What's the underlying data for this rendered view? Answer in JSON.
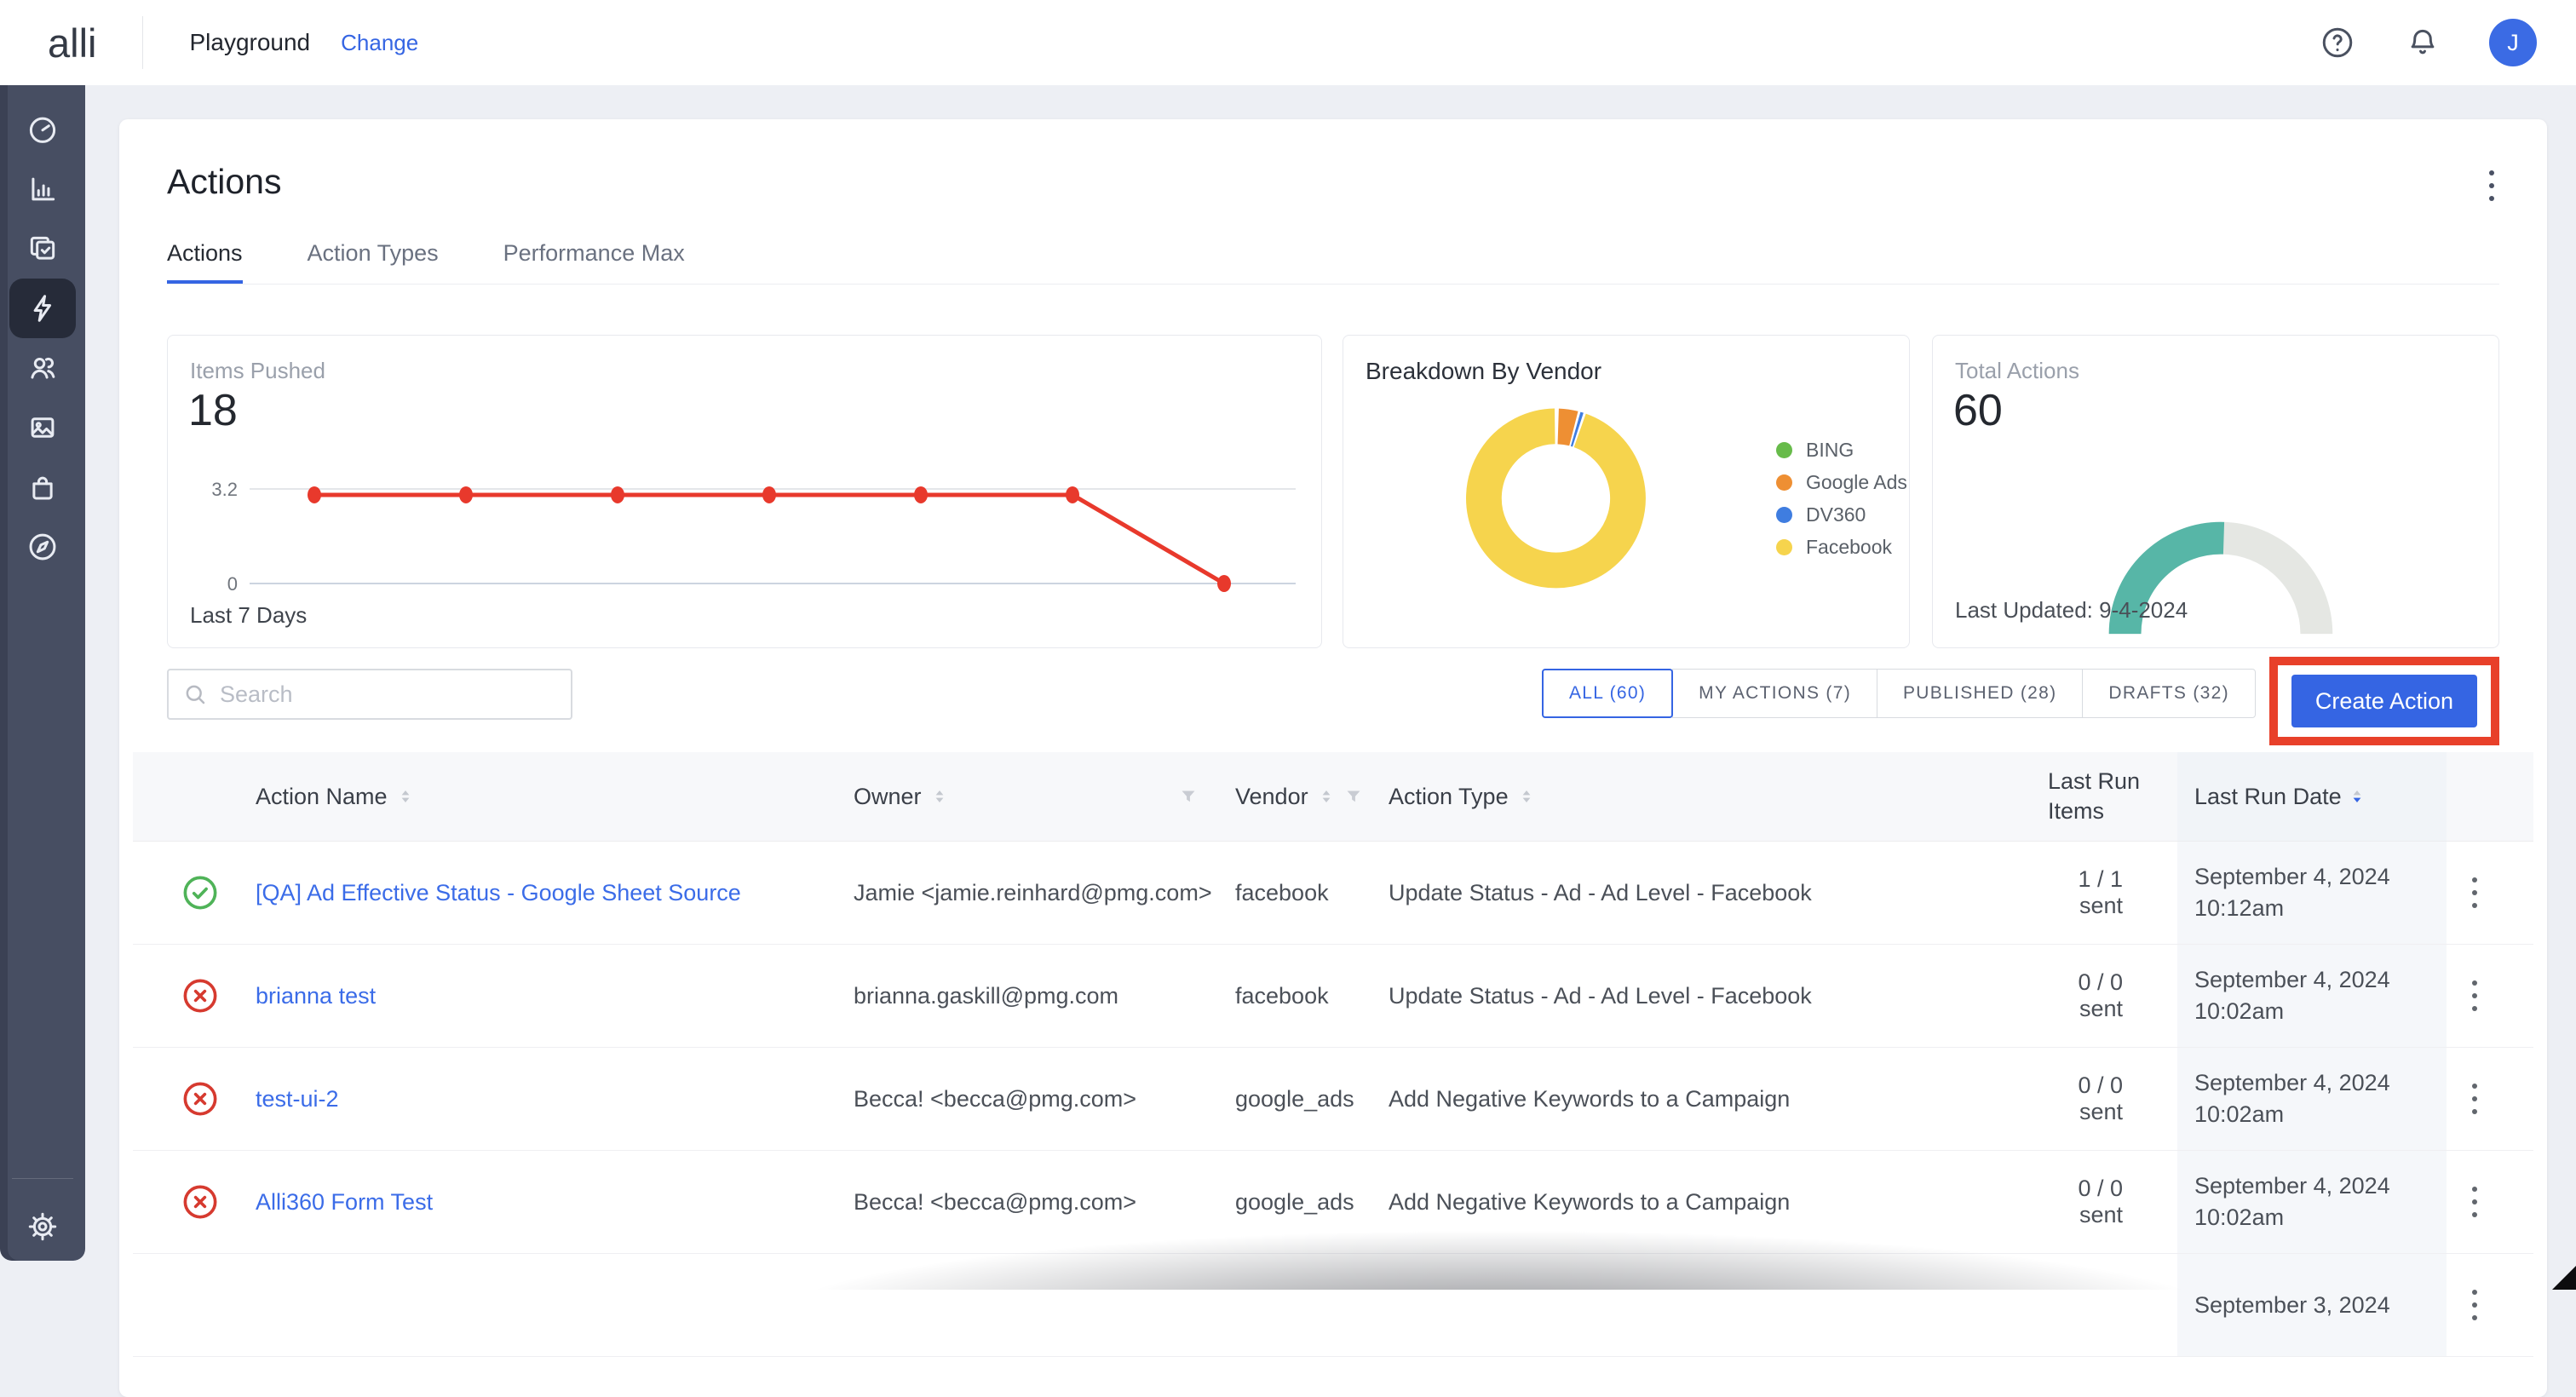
{
  "header": {
    "logo": "alli",
    "workspace_label": "Playground",
    "change_link": "Change",
    "avatar_initial": "J"
  },
  "sidebar": {
    "items": [
      {
        "name": "dashboard",
        "active": false
      },
      {
        "name": "analytics",
        "active": false
      },
      {
        "name": "tasks",
        "active": false
      },
      {
        "name": "actions",
        "active": true
      },
      {
        "name": "audiences",
        "active": false
      },
      {
        "name": "media",
        "active": false
      },
      {
        "name": "shop",
        "active": false
      },
      {
        "name": "discover",
        "active": false
      },
      {
        "name": "settings",
        "active": false
      }
    ]
  },
  "page": {
    "title": "Actions",
    "tabs": [
      {
        "label": "Actions",
        "active": true
      },
      {
        "label": "Action Types",
        "active": false
      },
      {
        "label": "Performance Max",
        "active": false
      }
    ]
  },
  "stats": {
    "items_pushed": {
      "title": "Items Pushed",
      "value": "18",
      "footer": "Last 7 Days"
    },
    "vendor": {
      "title": "Breakdown By Vendor",
      "legend": [
        "BING",
        "Google Ads",
        "DV360",
        "Facebook"
      ]
    },
    "total_actions": {
      "title": "Total Actions",
      "value": "60",
      "footer": "Last Updated: 9-4-2024"
    }
  },
  "chart_data": [
    {
      "type": "line",
      "title": "Items Pushed",
      "current_value": 18,
      "x": [
        "day1",
        "day2",
        "day3",
        "day4",
        "day5",
        "day6",
        "day7"
      ],
      "values": [
        3,
        3,
        3,
        3,
        3,
        3,
        0
      ],
      "yticks": [
        "0",
        "3.2"
      ],
      "ylim": [
        0,
        3.2
      ],
      "line_color": "#e8392c",
      "grid": "horizontal-only",
      "footer": "Last 7 Days"
    },
    {
      "type": "pie",
      "donut": true,
      "title": "Breakdown By Vendor",
      "labels": [
        "BING",
        "Google Ads",
        "DV360",
        "Facebook"
      ],
      "values_pct_est": [
        0.3,
        3.9,
        1.0,
        94.8
      ],
      "colors": [
        "#67bb4a",
        "#ee8f33",
        "#3f7de0",
        "#f6d44d"
      ],
      "legend_position": "right"
    },
    {
      "type": "gauge",
      "title": "Total Actions",
      "value": 60,
      "percent_filled_est": 51,
      "fill_color": "#57b6a7",
      "track_color": "#e5e7e3",
      "footer": "Last Updated: 9-4-2024"
    }
  ],
  "toolbar": {
    "search_placeholder": "Search",
    "filters": [
      {
        "label": "ALL (60)",
        "active": true
      },
      {
        "label": "MY ACTIONS (7)",
        "active": false
      },
      {
        "label": "PUBLISHED (28)",
        "active": false
      },
      {
        "label": "DRAFTS (32)",
        "active": false
      }
    ],
    "create_button": "Create Action"
  },
  "annotation": {
    "highlight_color": "#e8402a"
  },
  "table": {
    "columns": [
      "Action Name",
      "Owner",
      "Vendor",
      "Action Type",
      "Last Run Items",
      "Last Run Date"
    ],
    "sorted_column": "Last Run Date",
    "rows": [
      {
        "status": "success",
        "name": "[QA] Ad Effective Status - Google Sheet Source",
        "owner": "Jamie <jamie.reinhard@pmg.com>",
        "vendor": "facebook",
        "action_type": "Update Status - Ad - Ad Level - Facebook",
        "items": "1 / 1 sent",
        "date": "September 4, 2024",
        "time": "10:12am"
      },
      {
        "status": "error",
        "name": "brianna test",
        "owner": "brianna.gaskill@pmg.com",
        "vendor": "facebook",
        "action_type": "Update Status - Ad - Ad Level - Facebook",
        "items": "0 / 0 sent",
        "date": "September 4, 2024",
        "time": "10:02am"
      },
      {
        "status": "error",
        "name": "test-ui-2",
        "owner": "Becca! <becca@pmg.com>",
        "vendor": "google_ads",
        "action_type": "Add Negative Keywords to a Campaign",
        "items": "0 / 0 sent",
        "date": "September 4, 2024",
        "time": "10:02am"
      },
      {
        "status": "error",
        "name": "Alli360 Form Test",
        "owner": "Becca! <becca@pmg.com>",
        "vendor": "google_ads",
        "action_type": "Add Negative Keywords to a Campaign",
        "items": "0 / 0 sent",
        "date": "September 4, 2024",
        "time": "10:02am"
      },
      {
        "status": null,
        "name": "",
        "owner": "",
        "vendor": "",
        "action_type": "",
        "items": "",
        "date": "September 3, 2024",
        "time": ""
      }
    ]
  }
}
